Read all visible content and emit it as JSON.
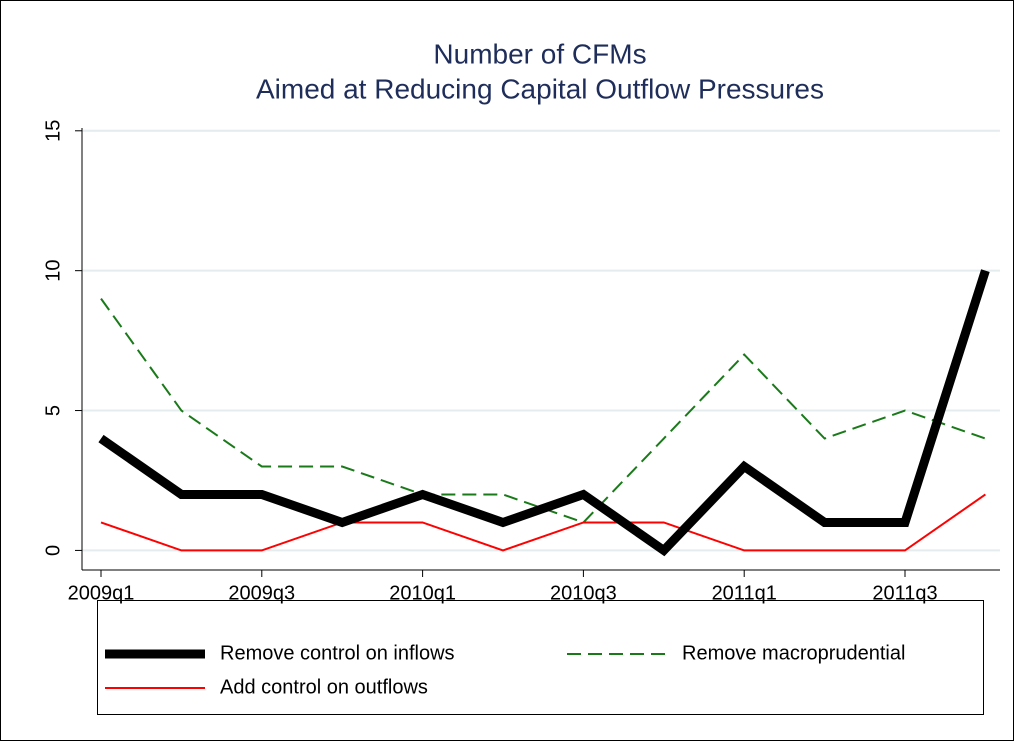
{
  "chart_data": {
    "type": "line",
    "title": [
      "Number of CFMs",
      "Aimed at Reducing Capital Outflow Pressures"
    ],
    "categories": [
      "2009q1",
      null,
      "2009q3",
      null,
      "2010q1",
      null,
      "2010q3",
      null,
      "2011q1",
      null,
      "2011q3",
      null
    ],
    "series": [
      {
        "name": "Remove control on inflows",
        "color": "#000000",
        "values": [
          4,
          2,
          2,
          1,
          2,
          1,
          2,
          0,
          3,
          1,
          1,
          10
        ]
      },
      {
        "name": "Remove macroprudential",
        "color": "#1a7a1a",
        "values": [
          9,
          5,
          3,
          3,
          2,
          2,
          1,
          4,
          7,
          4,
          5,
          4
        ]
      },
      {
        "name": "Add control on outflows",
        "color": "#ff0000",
        "values": [
          1,
          0,
          0,
          1,
          1,
          0,
          1,
          1,
          0,
          0,
          0,
          2
        ]
      }
    ],
    "ylim": [
      -0.7,
      15.1
    ],
    "yticks": [
      0,
      5,
      10,
      15
    ],
    "grid": true
  }
}
